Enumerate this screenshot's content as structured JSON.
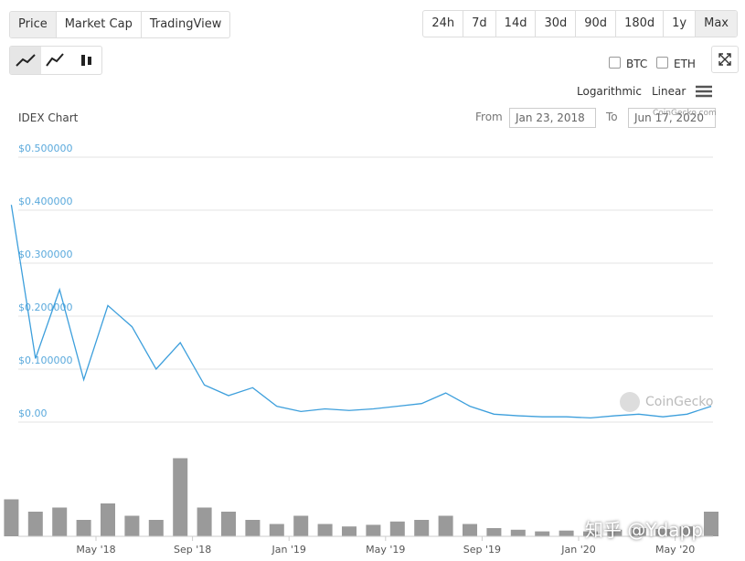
{
  "ui": {
    "tabs": [
      "Price",
      "Market Cap",
      "TradingView"
    ],
    "ranges": [
      "24h",
      "7d",
      "14d",
      "30d",
      "90d",
      "180d",
      "1y",
      "Max"
    ],
    "compare": [
      "BTC",
      "ETH"
    ],
    "scales": [
      "Logarithmic",
      "Linear"
    ],
    "from_label": "From",
    "from_date": "Jan 23, 2018",
    "to_label": "To",
    "to_date": "Jun 17, 2020",
    "credit": "CoinGecko.com",
    "watermark": "CoinGecko",
    "site_watermark": "知乎 @Ydapp"
  },
  "chart_data": {
    "type": "line",
    "title": "IDEX Chart",
    "x": [
      "2018-01",
      "2018-02",
      "2018-03",
      "2018-04",
      "2018-05",
      "2018-06",
      "2018-07",
      "2018-08",
      "2018-09",
      "2018-10",
      "2018-11",
      "2018-12",
      "2019-01",
      "2019-02",
      "2019-03",
      "2019-04",
      "2019-05",
      "2019-06",
      "2019-07",
      "2019-08",
      "2019-09",
      "2019-10",
      "2019-11",
      "2019-12",
      "2020-01",
      "2020-02",
      "2020-03",
      "2020-04",
      "2020-05",
      "2020-06"
    ],
    "series": [
      {
        "name": "Price",
        "color": "#3d9fdc",
        "values": [
          0.41,
          0.12,
          0.25,
          0.08,
          0.22,
          0.18,
          0.1,
          0.15,
          0.07,
          0.05,
          0.065,
          0.03,
          0.02,
          0.025,
          0.022,
          0.025,
          0.03,
          0.035,
          0.055,
          0.03,
          0.015,
          0.012,
          0.01,
          0.01,
          0.008,
          0.012,
          0.015,
          0.01,
          0.015,
          0.03
        ]
      }
    ],
    "volume": {
      "color": "#9a9a9a",
      "vlim": [
        0,
        100
      ],
      "values": [
        45,
        30,
        35,
        20,
        40,
        25,
        20,
        95,
        35,
        30,
        20,
        15,
        25,
        15,
        12,
        14,
        18,
        20,
        25,
        15,
        10,
        8,
        6,
        7,
        6,
        8,
        10,
        9,
        12,
        30
      ]
    },
    "ylim": [
      0,
      0.5
    ],
    "yticks": [
      {
        "value": 0,
        "label": "$0.00"
      },
      {
        "value": 0.1,
        "label": "$0.100000"
      },
      {
        "value": 0.2,
        "label": "$0.200000"
      },
      {
        "value": 0.3,
        "label": "$0.300000"
      },
      {
        "value": 0.4,
        "label": "$0.400000"
      },
      {
        "value": 0.5,
        "label": "$0.500000"
      }
    ],
    "xticks": [
      {
        "value": "2018-05",
        "label": "May '18"
      },
      {
        "value": "2018-09",
        "label": "Sep '18"
      },
      {
        "value": "2019-01",
        "label": "Jan '19"
      },
      {
        "value": "2019-05",
        "label": "May '19"
      },
      {
        "value": "2019-09",
        "label": "Sep '19"
      },
      {
        "value": "2020-01",
        "label": "Jan '20"
      },
      {
        "value": "2020-05",
        "label": "May '20"
      }
    ],
    "grid": true
  }
}
